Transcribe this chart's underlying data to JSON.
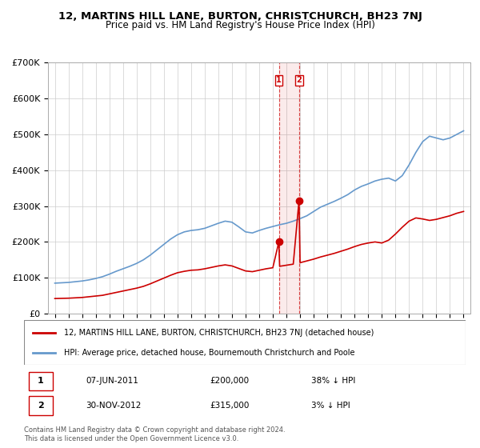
{
  "title": "12, MARTINS HILL LANE, BURTON, CHRISTCHURCH, BH23 7NJ",
  "subtitle": "Price paid vs. HM Land Registry's House Price Index (HPI)",
  "legend_line1": "12, MARTINS HILL LANE, BURTON, CHRISTCHURCH, BH23 7NJ (detached house)",
  "legend_line2": "HPI: Average price, detached house, Bournemouth Christchurch and Poole",
  "footer1": "Contains HM Land Registry data © Crown copyright and database right 2024.",
  "footer2": "This data is licensed under the Open Government Licence v3.0.",
  "transactions": [
    {
      "num": 1,
      "date": "07-JUN-2011",
      "price": "£200,000",
      "hpi_diff": "38% ↓ HPI",
      "year": 2011.44
    },
    {
      "num": 2,
      "date": "30-NOV-2012",
      "price": "£315,000",
      "hpi_diff": "3% ↓ HPI",
      "year": 2012.92
    }
  ],
  "hpi_data": {
    "years": [
      1995.0,
      1995.5,
      1996.0,
      1996.5,
      1997.0,
      1997.5,
      1998.0,
      1998.5,
      1999.0,
      1999.5,
      2000.0,
      2000.5,
      2001.0,
      2001.5,
      2002.0,
      2002.5,
      2003.0,
      2003.5,
      2004.0,
      2004.5,
      2005.0,
      2005.5,
      2006.0,
      2006.5,
      2007.0,
      2007.5,
      2008.0,
      2008.5,
      2009.0,
      2009.5,
      2010.0,
      2010.5,
      2011.0,
      2011.5,
      2012.0,
      2012.5,
      2013.0,
      2013.5,
      2014.0,
      2014.5,
      2015.0,
      2015.5,
      2016.0,
      2016.5,
      2017.0,
      2017.5,
      2018.0,
      2018.5,
      2019.0,
      2019.5,
      2020.0,
      2020.5,
      2021.0,
      2021.5,
      2022.0,
      2022.5,
      2023.0,
      2023.5,
      2024.0,
      2024.5,
      2025.0
    ],
    "values": [
      85000,
      86000,
      87000,
      89000,
      91000,
      94000,
      98000,
      103000,
      110000,
      118000,
      125000,
      132000,
      140000,
      150000,
      163000,
      178000,
      193000,
      208000,
      220000,
      228000,
      232000,
      234000,
      238000,
      245000,
      252000,
      258000,
      255000,
      242000,
      228000,
      225000,
      232000,
      238000,
      243000,
      248000,
      252000,
      258000,
      265000,
      273000,
      285000,
      297000,
      305000,
      313000,
      322000,
      332000,
      345000,
      355000,
      362000,
      370000,
      375000,
      378000,
      370000,
      385000,
      415000,
      450000,
      480000,
      495000,
      490000,
      485000,
      490000,
      500000,
      510000
    ]
  },
  "property_data": {
    "years": [
      1995.0,
      1995.5,
      1996.0,
      1996.5,
      1997.0,
      1997.5,
      1998.0,
      1998.5,
      1999.0,
      1999.5,
      2000.0,
      2000.5,
      2001.0,
      2001.5,
      2002.0,
      2002.5,
      2003.0,
      2003.5,
      2004.0,
      2004.5,
      2005.0,
      2005.5,
      2006.0,
      2006.5,
      2007.0,
      2007.5,
      2008.0,
      2008.5,
      2009.0,
      2009.5,
      2010.0,
      2010.5,
      2011.0,
      2011.44,
      2011.5,
      2012.0,
      2012.5,
      2012.92,
      2013.0,
      2013.5,
      2014.0,
      2014.5,
      2015.0,
      2015.5,
      2016.0,
      2016.5,
      2017.0,
      2017.5,
      2018.0,
      2018.5,
      2019.0,
      2019.5,
      2020.0,
      2020.5,
      2021.0,
      2021.5,
      2022.0,
      2022.5,
      2023.0,
      2023.5,
      2024.0,
      2024.5,
      2025.0
    ],
    "values": [
      42000,
      42500,
      43000,
      44000,
      45000,
      47000,
      49000,
      51000,
      55000,
      59000,
      63000,
      67000,
      71000,
      76000,
      83000,
      91000,
      99000,
      107000,
      114000,
      118000,
      121000,
      122000,
      125000,
      129000,
      133000,
      136000,
      133000,
      126000,
      119000,
      117000,
      121000,
      125000,
      128000,
      200000,
      132000,
      135000,
      138000,
      315000,
      142000,
      147000,
      152000,
      158000,
      163000,
      168000,
      174000,
      180000,
      187000,
      193000,
      197000,
      200000,
      197000,
      205000,
      222000,
      241000,
      258000,
      267000,
      264000,
      260000,
      263000,
      268000,
      273000,
      280000,
      285000
    ]
  },
  "ylim": [
    0,
    700000
  ],
  "yticks": [
    0,
    100000,
    200000,
    300000,
    400000,
    500000,
    600000,
    700000
  ],
  "ytick_labels": [
    "£0",
    "£100K",
    "£200K",
    "£300K",
    "£400K",
    "£500K",
    "£600K",
    "£700K"
  ],
  "xlim": [
    1994.5,
    2025.5
  ],
  "xticks": [
    1995,
    1996,
    1997,
    1998,
    1999,
    2000,
    2001,
    2002,
    2003,
    2004,
    2005,
    2006,
    2007,
    2008,
    2009,
    2010,
    2011,
    2012,
    2013,
    2014,
    2015,
    2016,
    2017,
    2018,
    2019,
    2020,
    2021,
    2022,
    2023,
    2024,
    2025
  ],
  "property_color": "#cc0000",
  "hpi_color": "#6699cc",
  "transaction_box_color": "#cc0000",
  "grid_color": "#cccccc",
  "background_color": "#ffffff"
}
